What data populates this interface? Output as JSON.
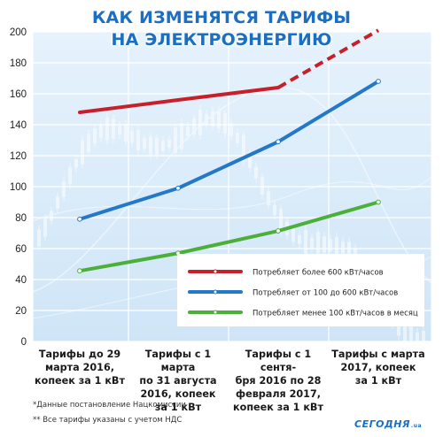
{
  "page": {
    "title_line1": "КАК ИЗМЕНЯТСЯ ТАРИФЫ",
    "title_line2": "НА ЭЛЕКТРОЭНЕРГИЮ",
    "footnote1": "*Данные постановление Нацкомиссии",
    "footnote2": "** Все тарифы указаны с учетом НДС",
    "brand": "СЕГОДНЯ",
    "brand_suffix": ".ua"
  },
  "chart_data": {
    "type": "line",
    "title": "КАК ИЗМЕНЯТСЯ ТАРИФЫ НА ЭЛЕКТРОЭНЕРГИЮ",
    "categories": [
      "Тарифы до 29 марта 2016, копеек за 1 кВт",
      "Тарифы с 1 марта по 31 августа 2016, копеек за 1 кВт",
      "Тарифы с 1 сентября 2016 по 28 февраля 2017, копеек за 1 кВт",
      "Тарифы с марта 2017, копеек за 1 кВт"
    ],
    "category_lines": [
      [
        "Тарифы до 29",
        "марта 2016,",
        "копеек за 1 кВт"
      ],
      [
        "Тарифы с 1 марта",
        "по 31 августа",
        "2016, копеек",
        "за 1 кВт"
      ],
      [
        "Тарифы с 1 сентя-",
        "бря 2016 по 28",
        "февраля 2017,",
        "копеек за 1 кВт"
      ],
      [
        "Тарифы с марта",
        "2017, копеек",
        "за 1 кВт"
      ]
    ],
    "ylim": [
      0,
      200
    ],
    "yticks": [
      "0",
      "20",
      "40",
      "60",
      "80",
      "100",
      "120",
      "140",
      "160",
      "180",
      "200"
    ],
    "grid": true,
    "legend_position": "lower-right",
    "series": [
      {
        "name": "Потребляет более 600 кВт/часов",
        "color": "#c8202a",
        "values": [
          148,
          156,
          164,
          201
        ],
        "dashed_last_segment": true
      },
      {
        "name": "Потребляет от 100 до 600 кВт/часов",
        "color": "#2378c8",
        "values": [
          79,
          99,
          129,
          168
        ],
        "dashed_last_segment": false
      },
      {
        "name": "Потребляет менее 100 кВт/часов в месяц",
        "color": "#4caf3a",
        "values": [
          45.6,
          57,
          71.4,
          90
        ],
        "dashed_last_segment": false
      }
    ]
  }
}
